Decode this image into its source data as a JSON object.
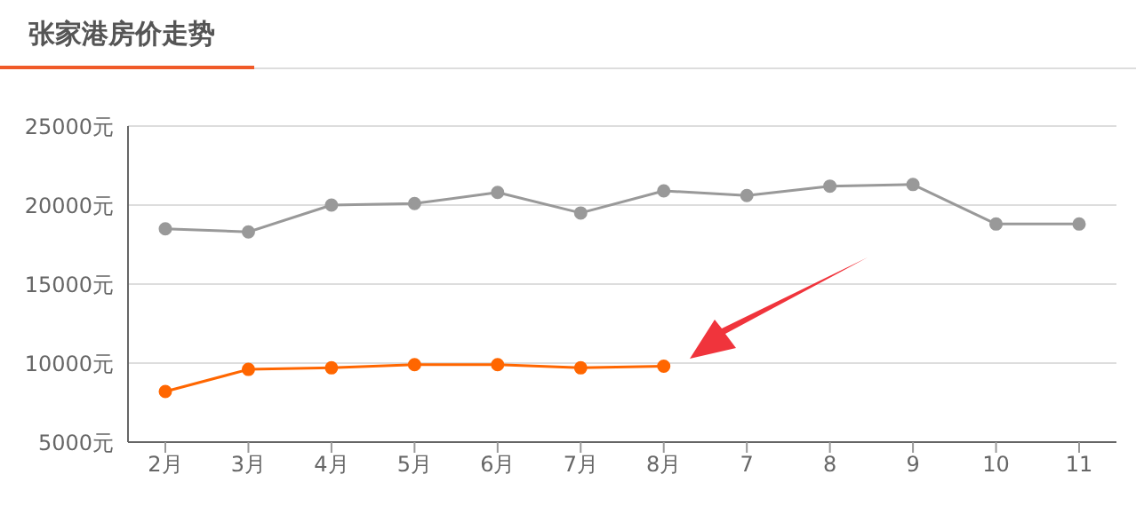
{
  "chart_data": {
    "type": "line",
    "title": "张家港房价走势",
    "categories": [
      "2月",
      "3月",
      "4月",
      "5月",
      "6月",
      "7月",
      "8月",
      "7",
      "8",
      "9",
      "10",
      "11"
    ],
    "series": [
      {
        "color": "#999999",
        "values": [
          18500,
          18300,
          20000,
          20100,
          20800,
          19500,
          20900,
          20600,
          21200,
          21300,
          18800,
          18800
        ]
      },
      {
        "color": "#ff6600",
        "values": [
          8200,
          9600,
          9700,
          9900,
          9900,
          9700,
          9800,
          null,
          null,
          null,
          null,
          null
        ]
      }
    ],
    "ylim": [
      5000,
      25000
    ],
    "yticks": [
      {
        "value": 5000,
        "label": "5000元"
      },
      {
        "value": 10000,
        "label": "10000元"
      },
      {
        "value": 15000,
        "label": "15000元"
      },
      {
        "value": 20000,
        "label": "20000元"
      },
      {
        "value": 25000,
        "label": "25000元"
      }
    ],
    "grid": "y",
    "legend": false,
    "marker": "circle",
    "line_style": "solid"
  }
}
